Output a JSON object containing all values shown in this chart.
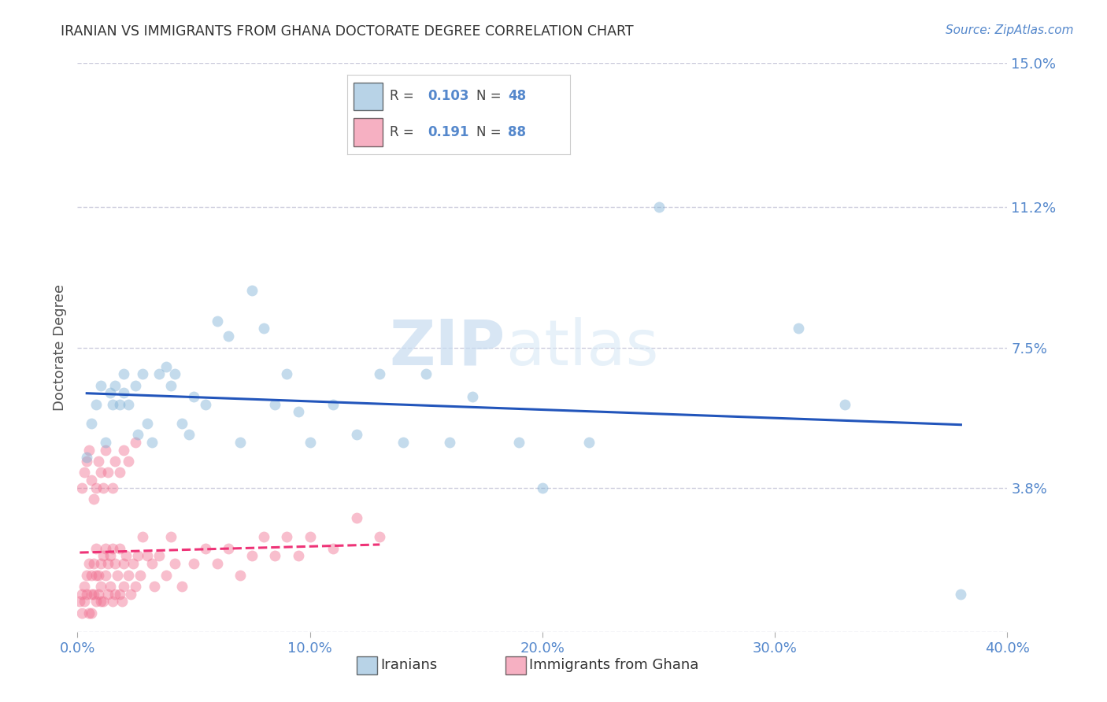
{
  "title": "IRANIAN VS IMMIGRANTS FROM GHANA DOCTORATE DEGREE CORRELATION CHART",
  "source": "Source: ZipAtlas.com",
  "ylabel": "Doctorate Degree",
  "xlim": [
    0.0,
    0.4
  ],
  "ylim": [
    0.0,
    0.15
  ],
  "xlabel_ticks": [
    "0.0%",
    "10.0%",
    "20.0%",
    "30.0%",
    "40.0%"
  ],
  "xlabel_vals": [
    0.0,
    0.1,
    0.2,
    0.3,
    0.4
  ],
  "ylabel_ticks": [
    "15.0%",
    "11.2%",
    "7.5%",
    "3.8%"
  ],
  "ylabel_vals": [
    0.15,
    0.112,
    0.075,
    0.038
  ],
  "grid_vals": [
    0.0,
    0.038,
    0.075,
    0.112,
    0.15
  ],
  "watermark": "ZIPatlas",
  "legend_iranian_R": "0.103",
  "legend_iranian_N": "48",
  "legend_ghana_R": "0.191",
  "legend_ghana_N": "88",
  "iranian_color": "#7EB0D5",
  "ghana_color": "#F07090",
  "trendline_iranian_color": "#2255BB",
  "trendline_ghana_color": "#EE3377",
  "grid_color": "#CCCCDD",
  "axis_color": "#5588CC",
  "title_color": "#333333",
  "iranians_x": [
    0.004,
    0.006,
    0.008,
    0.01,
    0.012,
    0.014,
    0.015,
    0.016,
    0.018,
    0.02,
    0.02,
    0.022,
    0.025,
    0.026,
    0.028,
    0.03,
    0.032,
    0.035,
    0.038,
    0.04,
    0.042,
    0.045,
    0.048,
    0.05,
    0.055,
    0.06,
    0.065,
    0.07,
    0.075,
    0.08,
    0.085,
    0.09,
    0.095,
    0.1,
    0.11,
    0.12,
    0.13,
    0.14,
    0.15,
    0.16,
    0.17,
    0.19,
    0.2,
    0.22,
    0.25,
    0.31,
    0.33,
    0.38
  ],
  "iranians_y": [
    0.046,
    0.055,
    0.06,
    0.065,
    0.05,
    0.063,
    0.06,
    0.065,
    0.06,
    0.063,
    0.068,
    0.06,
    0.065,
    0.052,
    0.068,
    0.055,
    0.05,
    0.068,
    0.07,
    0.065,
    0.068,
    0.055,
    0.052,
    0.062,
    0.06,
    0.082,
    0.078,
    0.05,
    0.09,
    0.08,
    0.06,
    0.068,
    0.058,
    0.05,
    0.06,
    0.052,
    0.068,
    0.05,
    0.068,
    0.05,
    0.062,
    0.05,
    0.038,
    0.05,
    0.112,
    0.08,
    0.06,
    0.01
  ],
  "ghana_x": [
    0.001,
    0.002,
    0.002,
    0.003,
    0.003,
    0.004,
    0.004,
    0.005,
    0.005,
    0.006,
    0.006,
    0.006,
    0.007,
    0.007,
    0.008,
    0.008,
    0.008,
    0.009,
    0.009,
    0.01,
    0.01,
    0.01,
    0.011,
    0.011,
    0.012,
    0.012,
    0.013,
    0.013,
    0.014,
    0.014,
    0.015,
    0.015,
    0.016,
    0.016,
    0.017,
    0.018,
    0.018,
    0.019,
    0.02,
    0.02,
    0.021,
    0.022,
    0.023,
    0.024,
    0.025,
    0.026,
    0.027,
    0.028,
    0.03,
    0.032,
    0.033,
    0.035,
    0.038,
    0.04,
    0.042,
    0.045,
    0.05,
    0.055,
    0.06,
    0.065,
    0.07,
    0.075,
    0.08,
    0.085,
    0.09,
    0.095,
    0.1,
    0.11,
    0.12,
    0.13,
    0.002,
    0.003,
    0.004,
    0.005,
    0.006,
    0.007,
    0.008,
    0.009,
    0.01,
    0.011,
    0.012,
    0.013,
    0.015,
    0.016,
    0.018,
    0.02,
    0.022,
    0.025
  ],
  "ghana_y": [
    0.008,
    0.01,
    0.005,
    0.012,
    0.008,
    0.01,
    0.015,
    0.005,
    0.018,
    0.01,
    0.015,
    0.005,
    0.01,
    0.018,
    0.008,
    0.015,
    0.022,
    0.01,
    0.015,
    0.008,
    0.018,
    0.012,
    0.02,
    0.008,
    0.015,
    0.022,
    0.01,
    0.018,
    0.012,
    0.02,
    0.008,
    0.022,
    0.01,
    0.018,
    0.015,
    0.01,
    0.022,
    0.008,
    0.018,
    0.012,
    0.02,
    0.015,
    0.01,
    0.018,
    0.012,
    0.02,
    0.015,
    0.025,
    0.02,
    0.018,
    0.012,
    0.02,
    0.015,
    0.025,
    0.018,
    0.012,
    0.018,
    0.022,
    0.018,
    0.022,
    0.015,
    0.02,
    0.025,
    0.02,
    0.025,
    0.02,
    0.025,
    0.022,
    0.03,
    0.025,
    0.038,
    0.042,
    0.045,
    0.048,
    0.04,
    0.035,
    0.038,
    0.045,
    0.042,
    0.038,
    0.048,
    0.042,
    0.038,
    0.045,
    0.042,
    0.048,
    0.045,
    0.05
  ]
}
